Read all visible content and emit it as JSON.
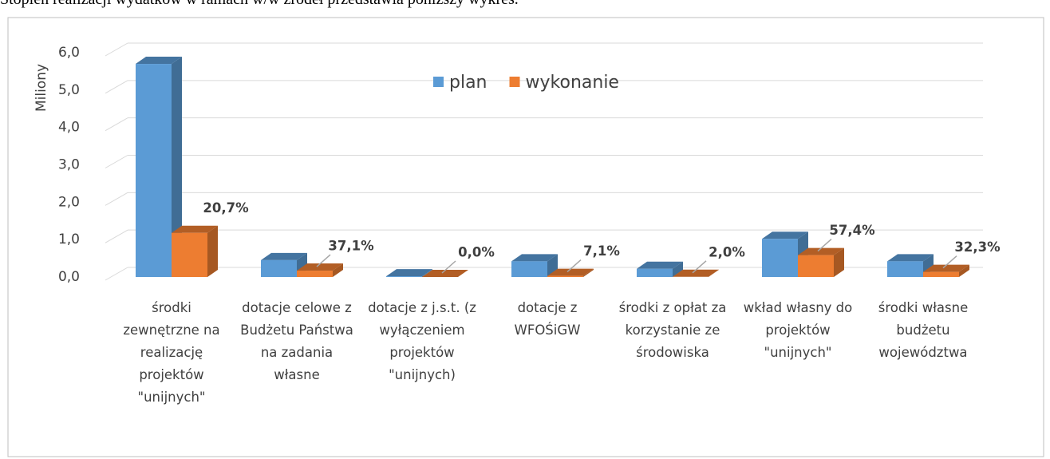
{
  "intro": "Stopień realizacji wydatków w ramach w/w źródeł przedstawia poniższy wykres.",
  "chart_data": {
    "type": "bar3d",
    "y_label": "Miliony",
    "categories": [
      "środki zewnętrzne na realizację projektów \"unijnych\"",
      "dotacje celowe z Budżetu Państwa na zadania własne",
      "dotacje z j.s.t. (z wyłączeniem projektów \"unijnych)",
      "dotacje z WFOŚiGW",
      "środki z opłat za korzystanie ze środowiska",
      "wkład własny do projektów \"unijnych\"",
      "środki własne budżetu województwa"
    ],
    "series": [
      {
        "name": "plan",
        "color": "#5b9bd5",
        "values": [
          5.7,
          0.45,
          0.02,
          0.42,
          0.22,
          1.02,
          0.42
        ]
      },
      {
        "name": "wykonanie",
        "color": "#ed7d31",
        "values": [
          1.18,
          0.17,
          0,
          0.03,
          0.0044,
          0.585,
          0.136
        ]
      }
    ],
    "annotations": [
      "20,7%",
      "37,1%",
      "0,0%",
      "7,1%",
      "2,0%",
      "57,4%",
      "32,3%"
    ],
    "ylim": [
      0,
      6
    ],
    "yticks": [
      {
        "value": 0,
        "label": "0,0"
      },
      {
        "value": 1,
        "label": "1,0"
      },
      {
        "value": 2,
        "label": "2,0"
      },
      {
        "value": 3,
        "label": "3,0"
      },
      {
        "value": 4,
        "label": "4,0"
      },
      {
        "value": 5,
        "label": "5,0"
      },
      {
        "value": 6,
        "label": "6,0"
      }
    ],
    "grid": true,
    "legend": "top"
  }
}
